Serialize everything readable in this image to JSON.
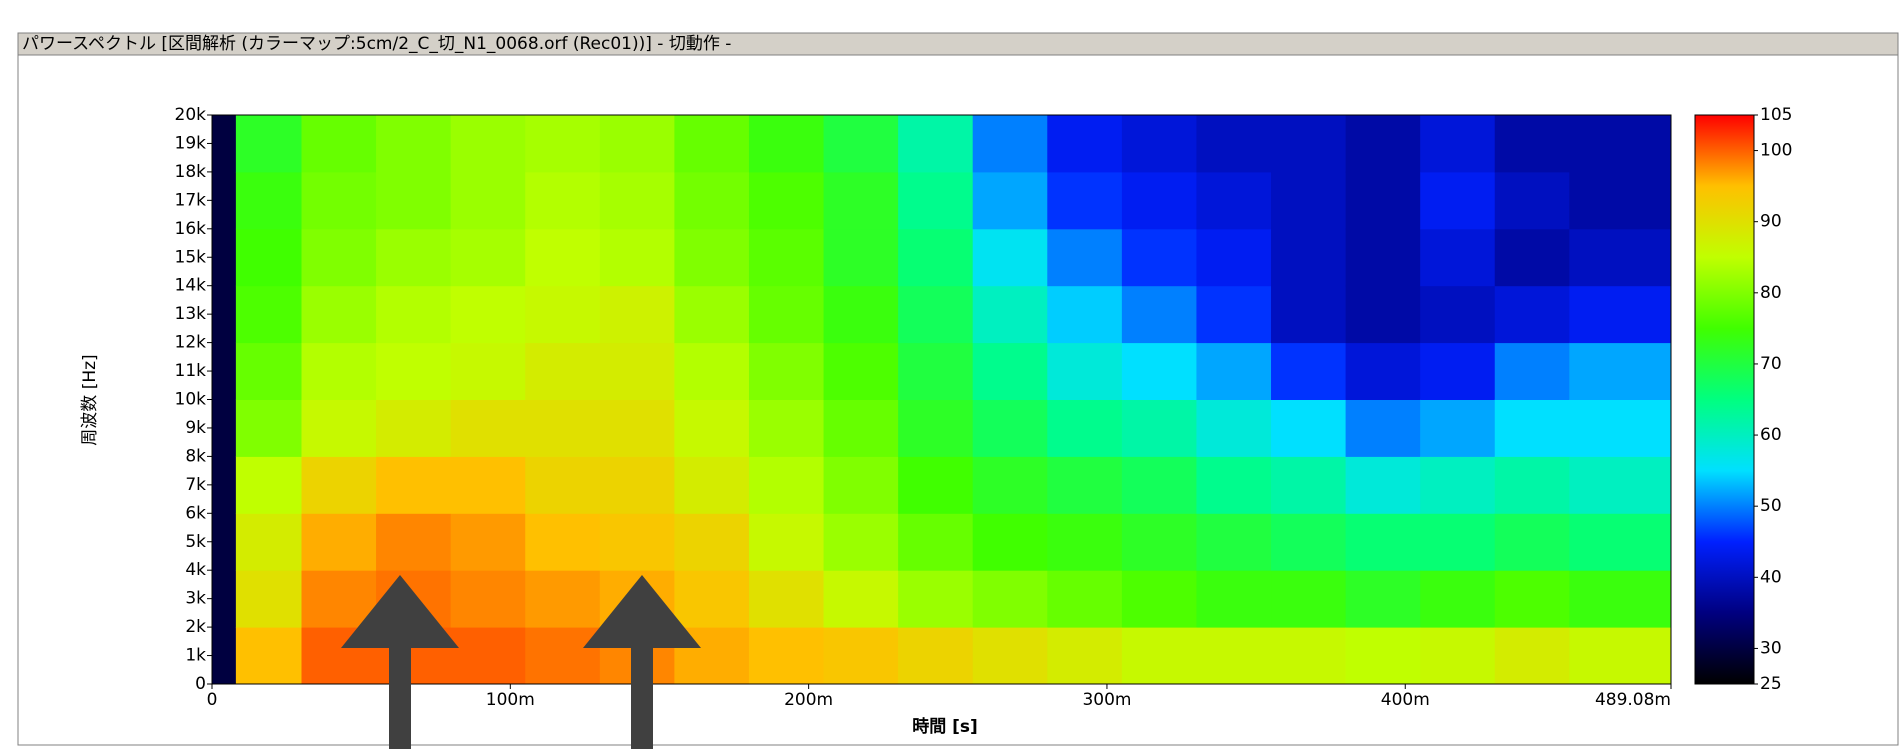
{
  "window_title": "パワースペクトル [区間解析 (カラーマップ:5cm/2_C_切_N1_0068.orf (Rec01))] - 切動作 -",
  "chart_data": {
    "type": "heatmap",
    "xlabel": "時間 [s]",
    "ylabel": "周波数 [Hz]",
    "xlim": [
      0,
      0.48908
    ],
    "xticks": [
      0,
      {
        "value": 0.1,
        "label": "100m"
      },
      {
        "value": 0.2,
        "label": "200m"
      },
      {
        "value": 0.3,
        "label": "300m"
      },
      {
        "value": 0.4,
        "label": "400m"
      },
      {
        "value": 0.48908,
        "label": "489.08m"
      }
    ],
    "ylim": [
      0,
      20000
    ],
    "yticks": [
      0,
      {
        "value": 1000,
        "label": "1k"
      },
      {
        "value": 2000,
        "label": "2k"
      },
      {
        "value": 3000,
        "label": "3k"
      },
      {
        "value": 4000,
        "label": "4k"
      },
      {
        "value": 5000,
        "label": "5k"
      },
      {
        "value": 6000,
        "label": "6k"
      },
      {
        "value": 7000,
        "label": "7k"
      },
      {
        "value": 8000,
        "label": "8k"
      },
      {
        "value": 9000,
        "label": "9k"
      },
      {
        "value": 10000,
        "label": "10k"
      },
      {
        "value": 11000,
        "label": "11k"
      },
      {
        "value": 12000,
        "label": "12k"
      },
      {
        "value": 13000,
        "label": "13k"
      },
      {
        "value": 14000,
        "label": "14k"
      },
      {
        "value": 15000,
        "label": "15k"
      },
      {
        "value": 16000,
        "label": "16k"
      },
      {
        "value": 17000,
        "label": "17k"
      },
      {
        "value": 18000,
        "label": "18k"
      },
      {
        "value": 19000,
        "label": "19k"
      },
      {
        "value": 20000,
        "label": "20k"
      }
    ],
    "zlim": [
      25,
      105
    ],
    "zticks": [
      25,
      30,
      40,
      50,
      60,
      70,
      80,
      90,
      100,
      105
    ],
    "colormap": [
      "#000000",
      "#000080",
      "#0020ff",
      "#00e0ff",
      "#00ff80",
      "#40ff00",
      "#c0ff00",
      "#ffc000",
      "#ff0000"
    ],
    "xbins": [
      0,
      0.008,
      0.03,
      0.055,
      0.08,
      0.105,
      0.13,
      0.155,
      0.18,
      0.205,
      0.23,
      0.255,
      0.28,
      0.305,
      0.33,
      0.355,
      0.38,
      0.405,
      0.43,
      0.455,
      0.48908
    ],
    "ybins": [
      0,
      2000,
      4000,
      6000,
      8000,
      10000,
      12000,
      14000,
      16000,
      18000,
      20000
    ],
    "values": [
      [
        30,
        30,
        30,
        30,
        30,
        30,
        30,
        30,
        30,
        30
      ],
      [
        95,
        90,
        88,
        85,
        80,
        78,
        76,
        75,
        74,
        72
      ],
      [
        100,
        98,
        96,
        92,
        86,
        84,
        82,
        80,
        79,
        78
      ],
      [
        100,
        99,
        98,
        95,
        88,
        85,
        84,
        82,
        80,
        80
      ],
      [
        100,
        98,
        97,
        95,
        90,
        86,
        85,
        83,
        82,
        82
      ],
      [
        99,
        97,
        95,
        92,
        90,
        88,
        86,
        85,
        84,
        83
      ],
      [
        98,
        96,
        94,
        92,
        90,
        88,
        87,
        84,
        83,
        82
      ],
      [
        96,
        94,
        92,
        88,
        86,
        84,
        82,
        80,
        79,
        78
      ],
      [
        95,
        90,
        86,
        84,
        82,
        80,
        78,
        77,
        76,
        74
      ],
      [
        94,
        86,
        82,
        80,
        78,
        76,
        74,
        72,
        72,
        70
      ],
      [
        92,
        82,
        78,
        75,
        72,
        70,
        68,
        66,
        64,
        62
      ],
      [
        90,
        80,
        75,
        72,
        68,
        64,
        60,
        56,
        52,
        50
      ],
      [
        88,
        78,
        74,
        70,
        64,
        58,
        54,
        50,
        46,
        44
      ],
      [
        86,
        76,
        72,
        68,
        62,
        55,
        50,
        46,
        44,
        42
      ],
      [
        86,
        74,
        70,
        64,
        58,
        52,
        46,
        44,
        42,
        40
      ],
      [
        86,
        74,
        68,
        62,
        55,
        46,
        40,
        40,
        40,
        40
      ],
      [
        85,
        72,
        66,
        58,
        50,
        42,
        38,
        38,
        38,
        38
      ],
      [
        86,
        74,
        66,
        60,
        52,
        44,
        40,
        42,
        44,
        42
      ],
      [
        88,
        76,
        68,
        62,
        55,
        50,
        42,
        38,
        40,
        38
      ],
      [
        86,
        74,
        66,
        60,
        55,
        52,
        44,
        40,
        38,
        38
      ]
    ]
  }
}
